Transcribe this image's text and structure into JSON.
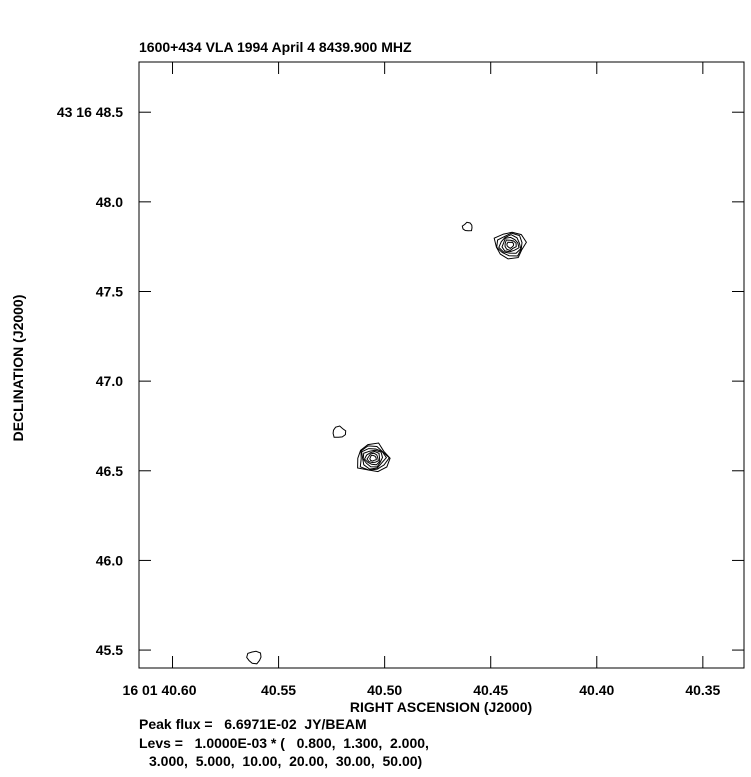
{
  "chart_data": {
    "type": "contour",
    "title": "1600+434   VLA  1994  April  4   8439.900  MHZ",
    "xlabel": "RIGHT  ASCENSION  (J2000)",
    "ylabel": "DECLINATION  (J2000)",
    "x_tick_labels": [
      "16  01  40.60",
      "40.55",
      "40.50",
      "40.45",
      "40.40",
      "40.35"
    ],
    "x_tick_values": [
      40.6,
      40.55,
      40.5,
      40.45,
      40.4,
      40.35
    ],
    "y_tick_labels": [
      "45.5",
      "46.0",
      "46.5",
      "47.0",
      "47.5",
      "48.0",
      "43  16  48.5"
    ],
    "y_tick_values": [
      45.5,
      46.0,
      46.5,
      47.0,
      47.5,
      48.0,
      48.5
    ],
    "xlim": [
      40.6158,
      40.3306
    ],
    "ylim": [
      45.4,
      48.78
    ],
    "sources": [
      {
        "ra": 40.5055,
        "dec": 46.57,
        "levels_drawn": 7,
        "max_radius_ra": 0.0068
      },
      {
        "ra": 40.4408,
        "dec": 47.76,
        "levels_drawn": 6,
        "max_radius_ra": 0.0064
      }
    ],
    "small_contours": [
      {
        "ra": 40.5215,
        "dec": 46.715,
        "radius_ra": 0.0029
      },
      {
        "ra": 40.4609,
        "dec": 47.86,
        "radius_ra": 0.0022
      },
      {
        "ra": 40.5615,
        "dec": 45.46,
        "radius_ra": 0.0032
      }
    ],
    "peak_flux_text": "Peak flux =   6.6971E-02  JY/BEAM",
    "levels_text_1": "Levs =   1.0000E-03 * (   0.800,  1.300,  2.000,",
    "levels_text_2": "3.000,  5.000,  10.00,  20.00,  30.00,  50.00)"
  }
}
